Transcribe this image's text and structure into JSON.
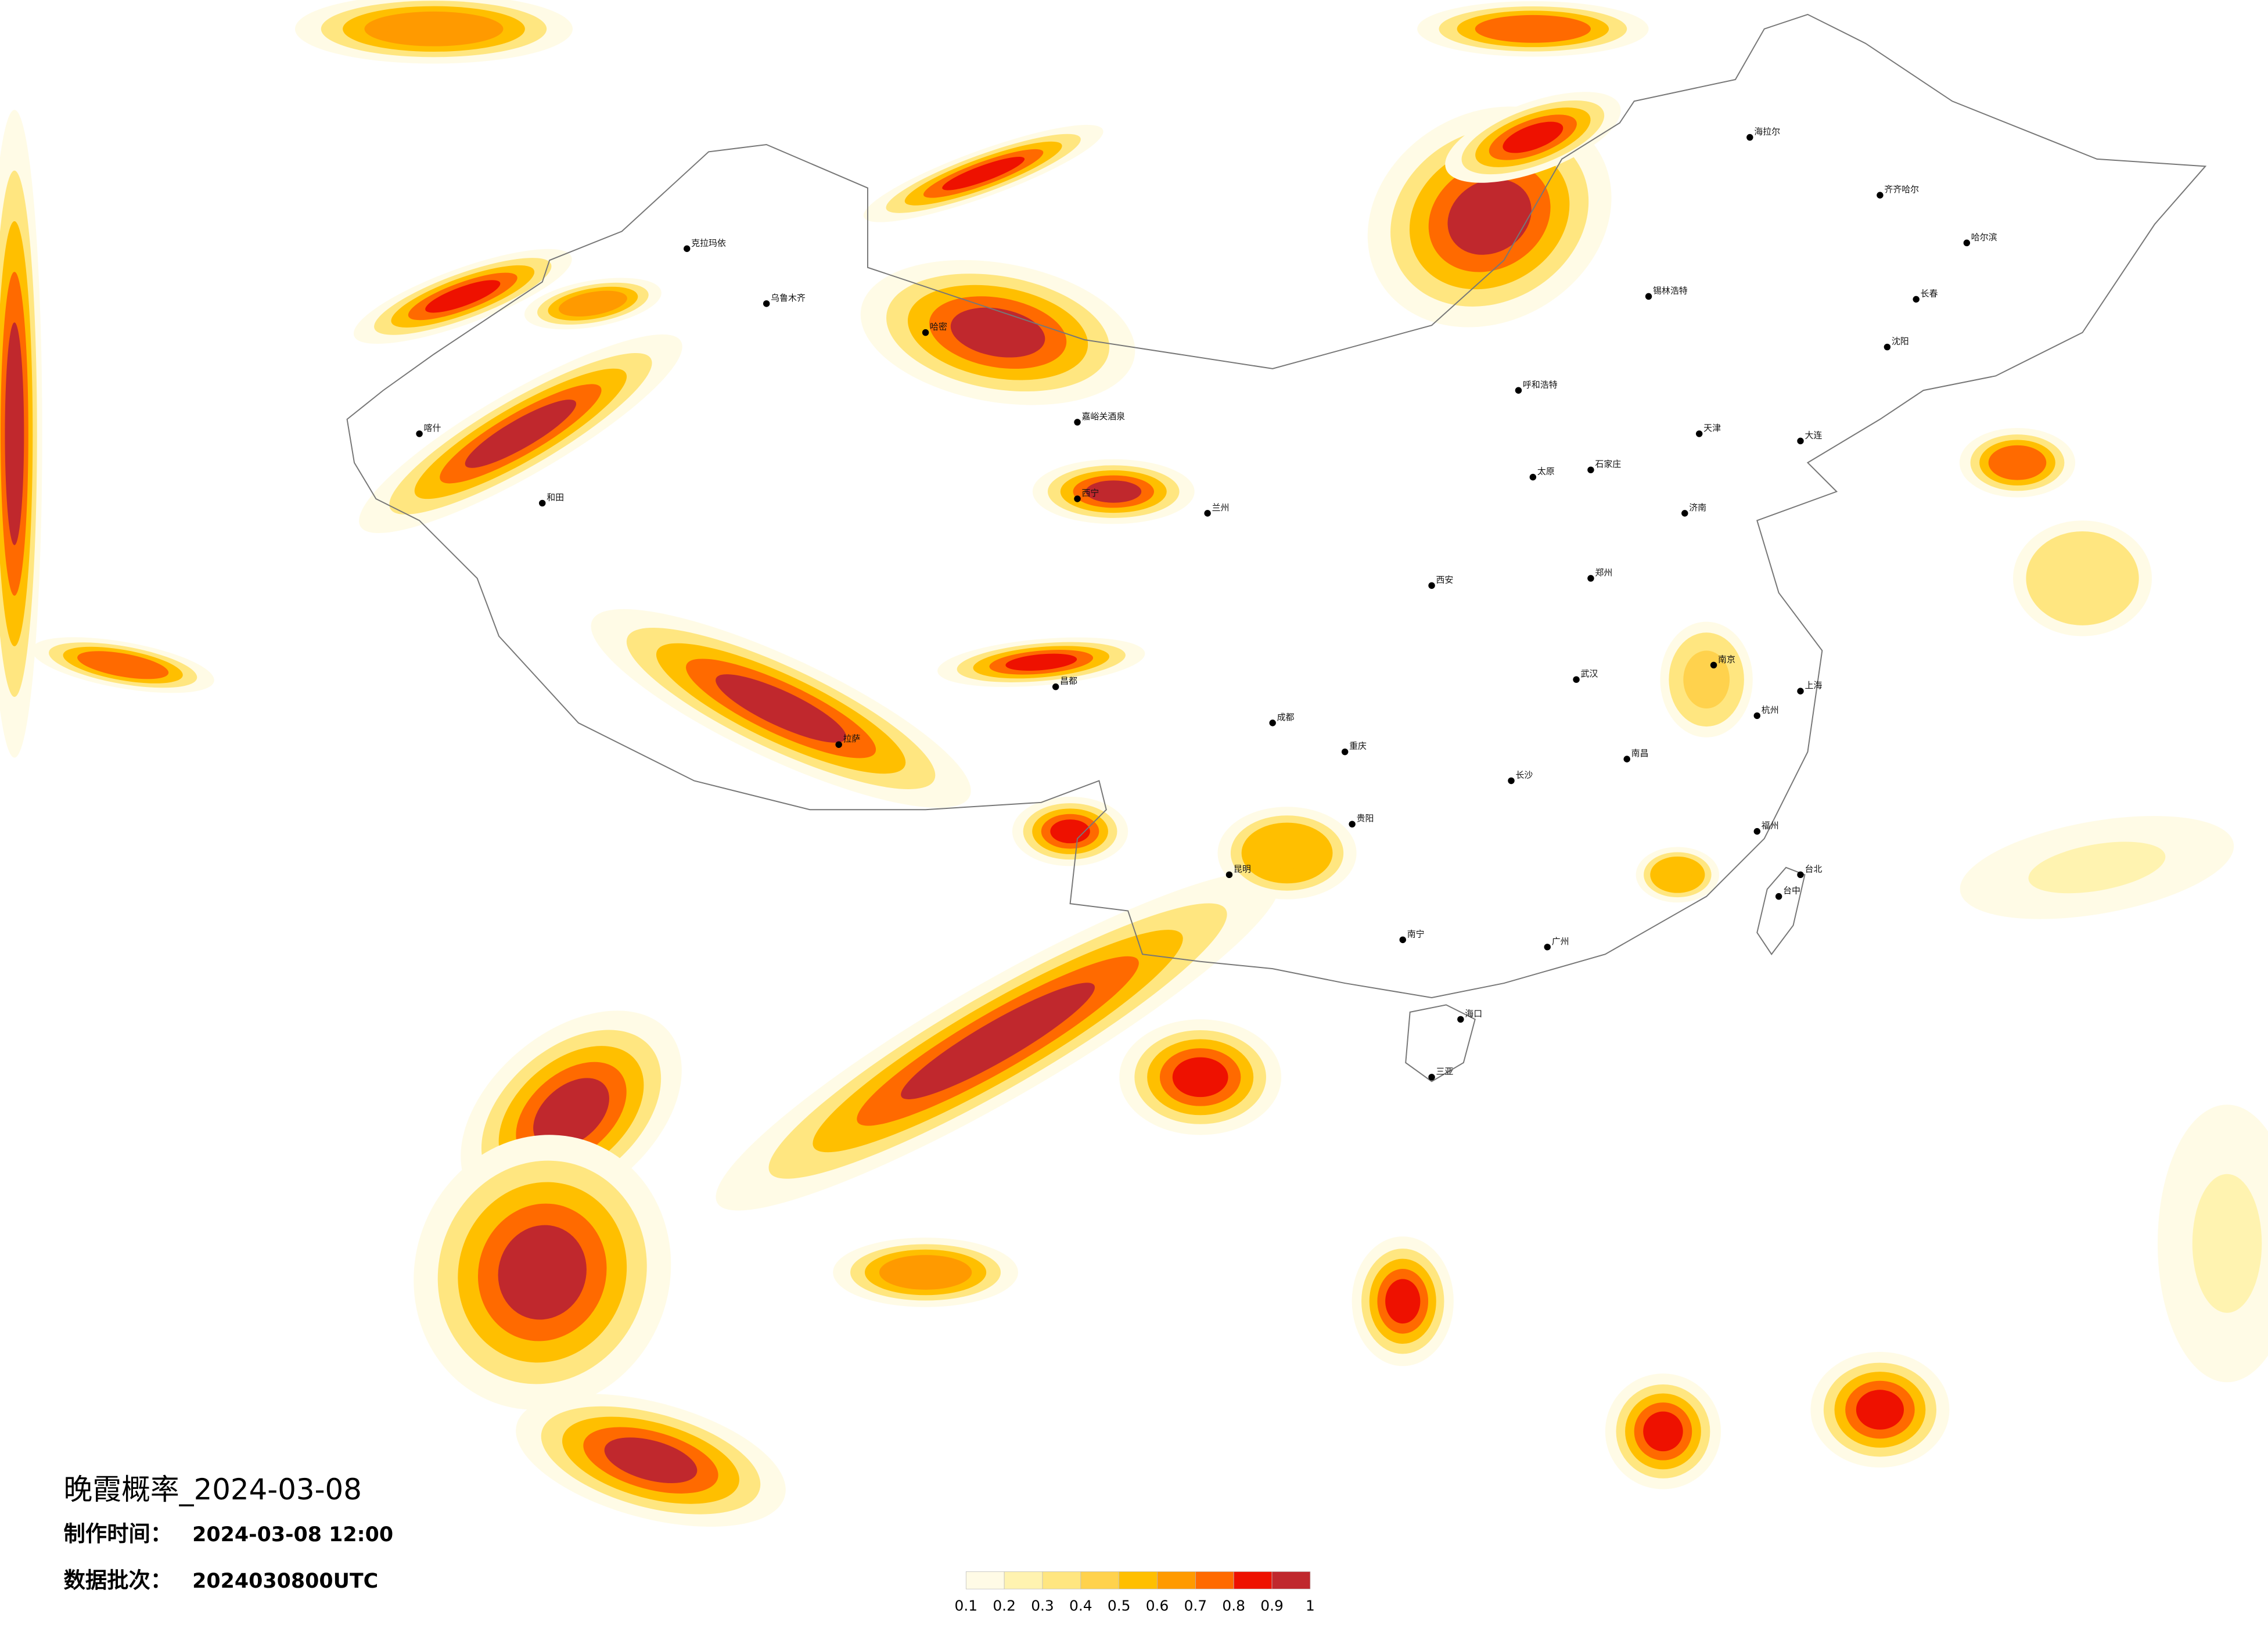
{
  "title": "晚霞概率_2024-03-08",
  "info": [
    {
      "label": "制作时间：",
      "value": "2024-03-08 12:00"
    },
    {
      "label": "数据批次：",
      "value": "2024030800UTC"
    }
  ],
  "colorbar": {
    "ticks": [
      0.1,
      0.2,
      0.3,
      0.4,
      0.5,
      0.6,
      0.7,
      0.8,
      0.9,
      1
    ],
    "colors": [
      "#fffbe6",
      "#fff3b0",
      "#ffe680",
      "#ffd24d",
      "#ffbf00",
      "#ff9a00",
      "#ff6a00",
      "#ee1100",
      "#c0282d"
    ]
  },
  "cities": [
    "哈尔滨",
    "长春",
    "沈阳",
    "乌鲁木齐",
    "拉萨",
    "西宁",
    "兰州",
    "海拉尔",
    "呼和浩特",
    "锡林浩特",
    "克拉玛依",
    "喀什",
    "和田",
    "哈密",
    "嘉峪关酒泉",
    "昌都",
    "成都",
    "重庆",
    "昆明",
    "贵阳",
    "南宁",
    "海口",
    "三亚",
    "武汉",
    "长沙",
    "南昌",
    "福州",
    "台北",
    "台中",
    "西安",
    "郑州",
    "济南",
    "太原",
    "石家庄",
    "天津",
    "大连",
    "齐齐哈尔",
    "杭州",
    "南京",
    "上海",
    "广州"
  ]
}
